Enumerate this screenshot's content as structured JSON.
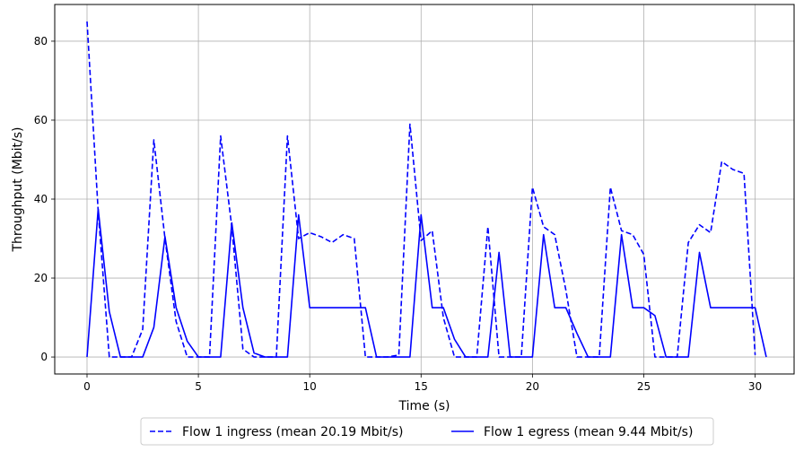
{
  "chart_data": {
    "type": "line",
    "title": "",
    "xlabel": "Time (s)",
    "ylabel": "Throughput (Mbit/s)",
    "xlim": [
      -1.45,
      31.75
    ],
    "ylim": [
      -4.3,
      89.3
    ],
    "xticks": [
      0,
      5,
      10,
      15,
      20,
      25,
      30
    ],
    "yticks": [
      0,
      20,
      40,
      60,
      80
    ],
    "grid": true,
    "legend_position": "bottom-center",
    "series": [
      {
        "name": "Flow 1 ingress (mean 20.19 Mbit/s)",
        "style": "dashed",
        "color": "#0000ff",
        "x": [
          0,
          0.5,
          1,
          1.5,
          2,
          2.5,
          3,
          3.5,
          4,
          4.5,
          5,
          5.5,
          6,
          6.5,
          7,
          7.5,
          8,
          8.5,
          9,
          9.5,
          10,
          10.5,
          11,
          11.5,
          12,
          12.5,
          13,
          13.5,
          14,
          14.5,
          15,
          15.5,
          16,
          16.5,
          17,
          17.5,
          18,
          18.5,
          19,
          19.5,
          20,
          20.5,
          21,
          21.5,
          22,
          22.5,
          23,
          23.5,
          24,
          24.5,
          25,
          25.5,
          26,
          26.5,
          27,
          27.5,
          28,
          28.5,
          29,
          29.5,
          30
        ],
        "y": [
          85,
          37,
          0,
          0,
          0,
          7,
          55,
          30,
          9,
          0,
          0,
          0,
          56,
          33,
          2,
          0,
          0,
          0,
          56,
          30,
          31.5,
          30.5,
          29,
          31,
          30,
          0,
          0,
          0,
          0.5,
          59,
          29.5,
          32,
          10,
          0,
          0,
          0,
          33,
          0,
          0,
          0,
          43,
          33,
          31,
          17,
          0,
          0,
          0,
          43,
          32,
          31,
          26,
          0,
          0,
          0,
          29,
          33.5,
          31.5,
          49.5,
          47.5,
          46.5,
          0.5
        ]
      },
      {
        "name": "Flow 1 egress (mean 9.44 Mbit/s)",
        "style": "solid",
        "color": "#0000ff",
        "x": [
          0,
          0.5,
          1,
          1.5,
          2,
          2.5,
          3,
          3.5,
          4,
          4.5,
          5,
          5.5,
          6,
          6.5,
          7,
          7.5,
          8,
          8.5,
          9,
          9.5,
          10,
          10.5,
          11,
          11.5,
          12,
          12.5,
          13,
          13.5,
          14,
          14.5,
          15,
          15.5,
          16,
          16.5,
          17,
          17.5,
          18,
          18.5,
          19,
          19.5,
          20,
          20.5,
          21,
          21.5,
          22,
          22.5,
          23,
          23.5,
          24,
          24.5,
          25,
          25.5,
          26,
          26.5,
          27,
          27.5,
          28,
          28.5,
          29,
          29.5,
          30,
          30.5
        ],
        "y": [
          0,
          37.5,
          11.5,
          0,
          0,
          0,
          7.5,
          30.5,
          12.5,
          4,
          0,
          0,
          0,
          34,
          12.5,
          1,
          0,
          0,
          0,
          36,
          12.5,
          12.5,
          12.5,
          12.5,
          12.5,
          12.5,
          0,
          0,
          0,
          0,
          36,
          12.5,
          12.5,
          4.5,
          0,
          0,
          0,
          26.5,
          0,
          0,
          0,
          31,
          12.5,
          12.5,
          6,
          0,
          0,
          0,
          31,
          12.5,
          12.5,
          10.5,
          0,
          0,
          0,
          26.5,
          12.5,
          12.5,
          12.5,
          12.5,
          12.5,
          0
        ]
      }
    ]
  }
}
